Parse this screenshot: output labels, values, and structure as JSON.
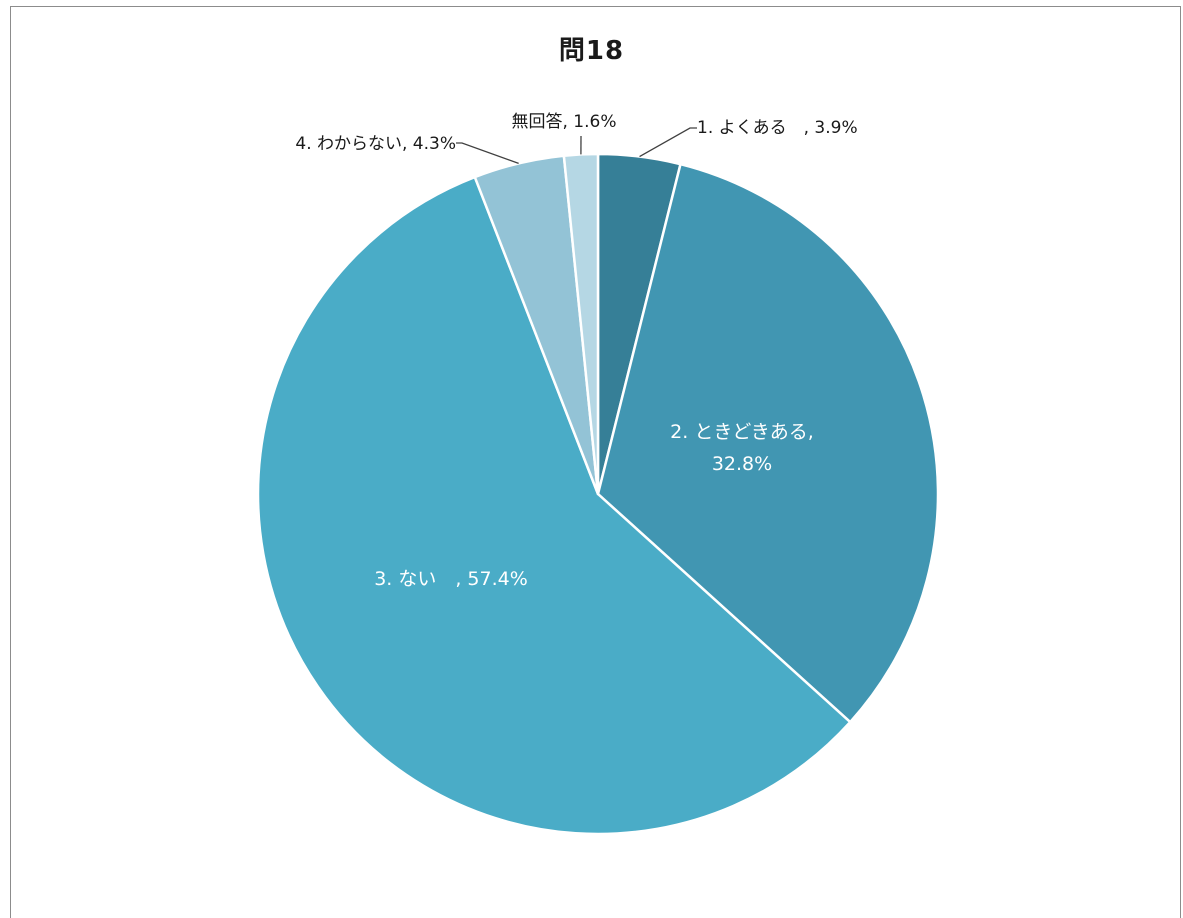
{
  "chart_data": {
    "type": "pie",
    "title": "問18",
    "slices": [
      {
        "label": "1. よくある",
        "value": 3.9,
        "text": "1. よくある　, 3.9%",
        "color": "#367f97"
      },
      {
        "label": "2. ときどきある",
        "value": 32.8,
        "text_lines": [
          "2. ときどきある,",
          "32.8%"
        ],
        "color": "#4196b2"
      },
      {
        "label": "3. ない",
        "value": 57.4,
        "text": "3. ない　, 57.4%",
        "color": "#4aacc7"
      },
      {
        "label": "4. わからない",
        "value": 4.3,
        "text": "4. わからない, 4.3%",
        "color": "#93c3d6"
      },
      {
        "label": "無回答",
        "value": 1.6,
        "text": "無回答, 1.6%",
        "color": "#b5d7e4"
      }
    ],
    "start": "12 o'clock",
    "direction": "clockwise"
  }
}
